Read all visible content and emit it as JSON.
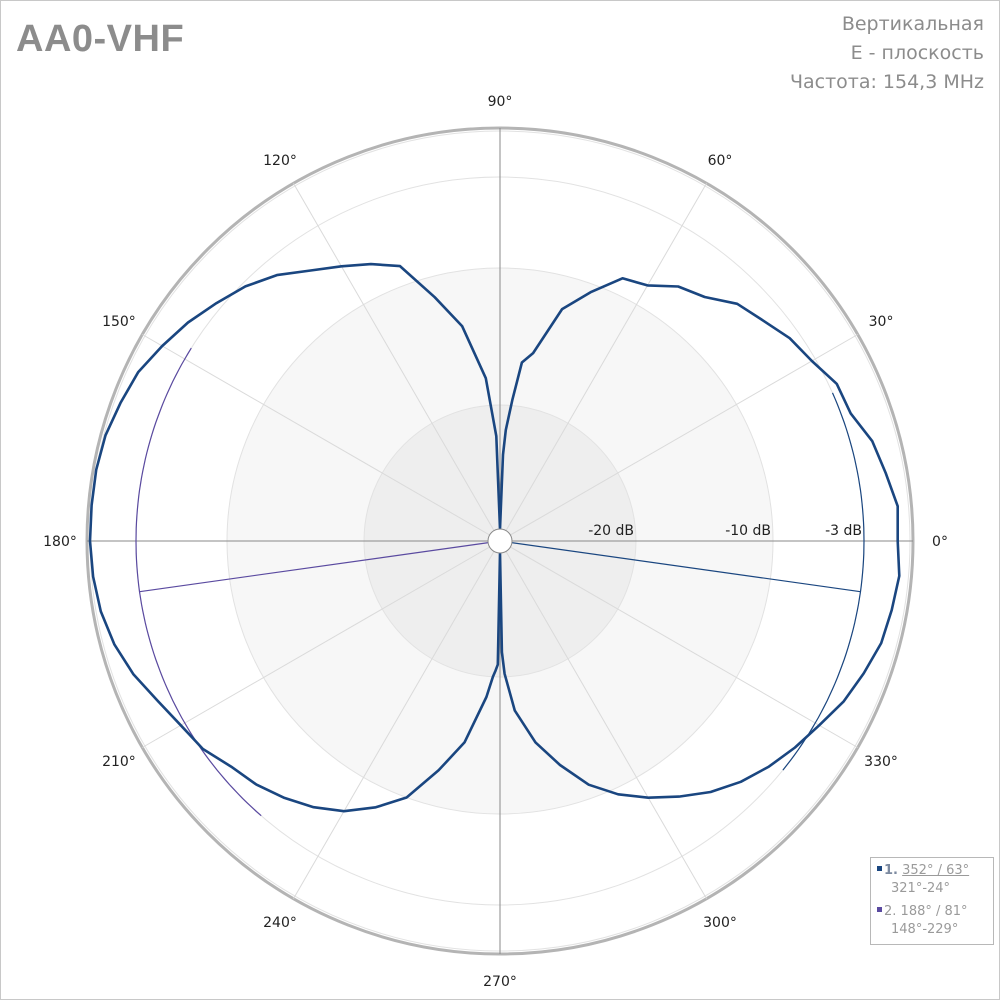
{
  "header": {
    "brand": "AA0-VHF",
    "info_lines": [
      "Вертикальная",
      "E - плоскость",
      "Частота: 154,3 MHz"
    ]
  },
  "chart_data": {
    "type": "polar",
    "title": "",
    "angle_unit": "deg",
    "radial_unit": "dB",
    "radial_scale": "dB (non-linear)",
    "rings_db": [
      -40,
      -20,
      -10,
      -3,
      0
    ],
    "radial_labels": [
      "-20 dB",
      "-10 dB",
      "-3 dB"
    ],
    "angle_ticks": [
      0,
      30,
      60,
      90,
      120,
      150,
      180,
      210,
      240,
      270,
      300,
      330
    ],
    "angle_tick_labels": [
      "0°",
      "30°",
      "60°",
      "90°",
      "120°",
      "150°",
      "180°",
      "210°",
      "240°",
      "270°",
      "300°",
      "330°"
    ],
    "grid": true,
    "series": [
      {
        "name": "",
        "color": "#1a4680",
        "angles": [
          0,
          5,
          10,
          15,
          20,
          25,
          30,
          35,
          40,
          45,
          50,
          55,
          60,
          65,
          70,
          75,
          80,
          83,
          85,
          87,
          88,
          90,
          92,
          95,
          100,
          105,
          110,
          115,
          120,
          125,
          130,
          135,
          140,
          145,
          150,
          155,
          160,
          165,
          170,
          175,
          180,
          185,
          190,
          195,
          200,
          205,
          210,
          215,
          220,
          225,
          230,
          235,
          240,
          245,
          250,
          255,
          260,
          265,
          267,
          268,
          269,
          270,
          271,
          272,
          275,
          280,
          285,
          290,
          295,
          300,
          305,
          310,
          315,
          320,
          325,
          330,
          335,
          340,
          345,
          350,
          355
        ],
        "values_db": [
          -0.8,
          -0.7,
          -1.2,
          -1.6,
          -2.4,
          -2.5,
          -3.3,
          -3.8,
          -4.6,
          -5.2,
          -6.5,
          -7.1,
          -8.3,
          -8.7,
          -10.6,
          -12.4,
          -16.0,
          -16.8,
          -19.6,
          -24.0,
          -28.0,
          -40.0,
          -25.0,
          -18.0,
          -14.0,
          -11.5,
          -8.5,
          -7.5,
          -6.6,
          -5.6,
          -4.3,
          -3.3,
          -2.6,
          -1.9,
          -1.3,
          -0.7,
          -0.4,
          -0.1,
          0.0,
          0.0,
          0.0,
          -0.1,
          -0.3,
          -0.7,
          -1.3,
          -2.1,
          -2.7,
          -3.1,
          -4.0,
          -4.5,
          -5.2,
          -6.0,
          -7.0,
          -8.4,
          -10.0,
          -12.6,
          -15.0,
          -18.5,
          -20.0,
          -21.0,
          -22.0,
          -40.0,
          -24.0,
          -20.5,
          -17.5,
          -15.0,
          -13.0,
          -11.0,
          -9.5,
          -8.2,
          -7.0,
          -5.8,
          -4.8,
          -4.0,
          -3.3,
          -2.7,
          -2.0,
          -1.5,
          -1.0,
          -0.8,
          -0.6
        ]
      }
    ],
    "legend": [
      {
        "index": "1.",
        "main": "352° / 63°",
        "range": "321°-24°",
        "color": "#1a4680",
        "direction_deg": 352,
        "arc_from_deg": 321,
        "arc_to_deg": 24
      },
      {
        "index": "2.",
        "main": "188° / 81°",
        "range": "148°-229°",
        "color": "#5a4aa0",
        "direction_deg": 188,
        "arc_from_deg": 148,
        "arc_to_deg": 229
      }
    ],
    "legend_position": "bottom-right"
  }
}
